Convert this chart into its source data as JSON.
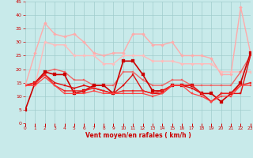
{
  "xlabel": "Vent moyen/en rafales ( km/h )",
  "xlim": [
    0,
    23
  ],
  "ylim": [
    0,
    45
  ],
  "yticks": [
    0,
    5,
    10,
    15,
    20,
    25,
    30,
    35,
    40,
    45
  ],
  "xticks": [
    0,
    1,
    2,
    3,
    4,
    5,
    6,
    7,
    8,
    9,
    10,
    11,
    12,
    13,
    14,
    15,
    16,
    17,
    18,
    19,
    20,
    21,
    22,
    23
  ],
  "background_color": "#c8eaea",
  "grid_color": "#a0cccc",
  "lines": [
    {
      "x": [
        0,
        1,
        2,
        3,
        4,
        5,
        6,
        7,
        8,
        9,
        10,
        11,
        12,
        13,
        14,
        15,
        16,
        17,
        18,
        19,
        20,
        21,
        22,
        23
      ],
      "y": [
        14,
        26,
        37,
        33,
        32,
        33,
        30,
        26,
        25,
        26,
        26,
        33,
        33,
        29,
        29,
        30,
        25,
        25,
        25,
        24,
        18,
        18,
        43,
        26
      ],
      "color": "#ffaaaa",
      "lw": 1.0,
      "marker": "D",
      "ms": 2.0
    },
    {
      "x": [
        0,
        1,
        2,
        3,
        4,
        5,
        6,
        7,
        8,
        9,
        10,
        11,
        12,
        13,
        14,
        15,
        16,
        17,
        18,
        19,
        20,
        21,
        22,
        23
      ],
      "y": [
        14,
        14,
        30,
        29,
        29,
        25,
        25,
        25,
        22,
        22,
        25,
        25,
        25,
        23,
        23,
        23,
        22,
        22,
        22,
        22,
        19,
        19,
        19,
        19
      ],
      "color": "#ffbbbb",
      "lw": 1.0,
      "marker": "D",
      "ms": 2.0
    },
    {
      "x": [
        0,
        1,
        2,
        3,
        4,
        5,
        6,
        7,
        8,
        9,
        10,
        11,
        12,
        13,
        14,
        15,
        16,
        17,
        18,
        19,
        20,
        21,
        22,
        23
      ],
      "y": [
        14,
        14,
        19,
        20,
        19,
        16,
        16,
        14,
        14,
        14,
        19,
        19,
        16,
        14,
        14,
        16,
        16,
        14,
        14,
        14,
        14,
        14,
        19,
        25
      ],
      "color": "#ee6666",
      "lw": 1.0,
      "marker": "s",
      "ms": 2.0
    },
    {
      "x": [
        0,
        1,
        2,
        3,
        4,
        5,
        6,
        7,
        8,
        9,
        10,
        11,
        12,
        13,
        14,
        15,
        16,
        17,
        18,
        19,
        20,
        21,
        22,
        23
      ],
      "y": [
        5,
        15,
        19,
        18,
        18,
        11,
        12,
        14,
        14,
        11,
        23,
        23,
        18,
        12,
        12,
        14,
        14,
        14,
        11,
        11,
        8,
        11,
        15,
        26
      ],
      "color": "#cc0000",
      "lw": 1.2,
      "marker": "s",
      "ms": 2.2
    },
    {
      "x": [
        0,
        1,
        2,
        3,
        4,
        5,
        6,
        7,
        8,
        9,
        10,
        11,
        12,
        13,
        14,
        15,
        16,
        17,
        18,
        19,
        20,
        21,
        22,
        23
      ],
      "y": [
        14,
        15,
        18,
        15,
        14,
        13,
        14,
        13,
        12,
        11,
        14,
        18,
        12,
        11,
        11,
        14,
        14,
        13,
        11,
        8,
        11,
        11,
        11,
        25
      ],
      "color": "#dd1111",
      "lw": 1.0,
      "marker": "s",
      "ms": 2.0
    },
    {
      "x": [
        0,
        1,
        2,
        3,
        4,
        5,
        6,
        7,
        8,
        9,
        10,
        11,
        12,
        13,
        14,
        15,
        16,
        17,
        18,
        19,
        20,
        21,
        22,
        23
      ],
      "y": [
        14,
        15,
        18,
        14,
        12,
        12,
        12,
        13,
        12,
        11,
        12,
        12,
        12,
        11,
        12,
        14,
        14,
        14,
        11,
        8,
        11,
        11,
        14,
        15
      ],
      "color": "#ee2222",
      "lw": 1.0,
      "marker": "s",
      "ms": 1.8
    },
    {
      "x": [
        0,
        1,
        2,
        3,
        4,
        5,
        6,
        7,
        8,
        9,
        10,
        11,
        12,
        13,
        14,
        15,
        16,
        17,
        18,
        19,
        20,
        21,
        22,
        23
      ],
      "y": [
        14,
        14,
        17,
        14,
        11,
        11,
        11,
        12,
        11,
        11,
        11,
        11,
        11,
        10,
        11,
        14,
        14,
        11,
        10,
        8,
        10,
        10,
        14,
        14
      ],
      "color": "#ff4444",
      "lw": 0.9,
      "marker": "s",
      "ms": 1.8
    }
  ]
}
